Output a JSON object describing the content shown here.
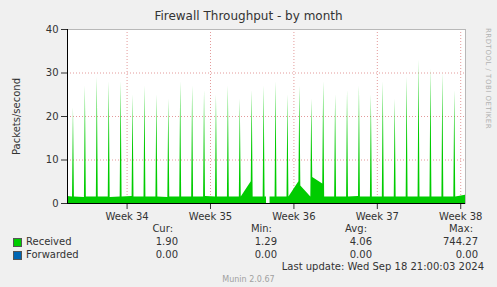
{
  "chart_data": {
    "type": "area",
    "title": "Firewall Throughput - by month",
    "y_label": "Packets/second",
    "x": [
      0,
      0.42,
      0.5,
      0.58,
      1.42,
      1.5,
      1.58,
      2.42,
      2.5,
      2.58,
      3.42,
      3.5,
      3.58,
      4.42,
      4.5,
      4.58,
      5.42,
      5.5,
      5.58,
      6.42,
      6.5,
      6.58,
      7.42,
      7.5,
      7.58,
      8.42,
      8.5,
      8.58,
      9.42,
      9.5,
      9.58,
      10.42,
      10.5,
      10.58,
      11.42,
      11.5,
      11.58,
      12.42,
      12.5,
      12.58,
      13.42,
      13.5,
      13.58,
      14.42,
      14.5,
      14.58,
      15.42,
      15.5,
      15.58,
      16.42,
      16.5,
      16.58,
      16.7,
      16.8,
      17,
      17.42,
      17.5,
      17.58,
      18.42,
      18.5,
      18.58,
      19.42,
      19.5,
      19.58,
      20.42,
      20.5,
      20.58,
      21.42,
      21.5,
      21.58,
      22.42,
      22.5,
      22.58,
      23.42,
      23.5,
      23.58,
      24.42,
      24.5,
      24.58,
      25.42,
      25.5,
      25.58,
      26.42,
      26.5,
      26.58,
      27.42,
      27.5,
      27.58,
      28.42,
      28.5,
      28.58,
      29.42,
      29.5,
      29.58,
      30.42,
      30.5,
      30.58,
      31.42,
      31.5,
      31.58,
      32.42,
      32.5,
      32.58,
      33.4
    ],
    "xlim": [
      0,
      33.4
    ],
    "xticks": [
      {
        "value": 5,
        "label": "Week 34"
      },
      {
        "value": 12,
        "label": "Week 35"
      },
      {
        "value": 19,
        "label": "Week 36"
      },
      {
        "value": 26,
        "label": "Week 37"
      },
      {
        "value": 33,
        "label": "Week 38"
      }
    ],
    "ylim": [
      0,
      40
    ],
    "yticks": [
      0,
      10,
      20,
      30,
      40
    ],
    "grid": true,
    "legend": "bottom",
    "stats_columns": [
      "Cur:",
      "Min:",
      "Avg:",
      "Max:"
    ],
    "series": [
      {
        "name": "Received",
        "color": "#00cc00",
        "type": "area",
        "values": [
          1.6,
          1.5,
          22,
          1.5,
          1.4,
          27,
          1.5,
          1.5,
          29,
          1.5,
          1.5,
          28,
          1.4,
          1.5,
          28,
          1.5,
          1.6,
          25,
          1.5,
          1.5,
          27,
          1.5,
          1.5,
          25,
          1.5,
          1.4,
          24,
          1.5,
          1.5,
          28,
          1.5,
          1.5,
          27,
          1.5,
          1.5,
          26,
          1.6,
          1.5,
          25,
          1.5,
          1.5,
          27,
          1.5,
          1.5,
          24,
          1.5,
          5,
          26,
          1.5,
          1.5,
          27,
          1.5,
          1.5,
          null,
          1.5,
          1.5,
          28,
          1.5,
          1.5,
          25,
          1.5,
          5,
          27,
          4,
          1.5,
          24,
          6,
          4.5,
          28,
          1.5,
          1.5,
          25,
          1.5,
          1.5,
          26,
          1.5,
          1.6,
          27,
          1.5,
          1.5,
          25,
          1.5,
          1.5,
          28,
          1.5,
          1.5,
          24,
          1.5,
          1.5,
          29,
          1.5,
          1.5,
          33,
          1.5,
          1.5,
          31,
          1.5,
          1.5,
          30,
          1.5,
          1.5,
          26,
          1.5,
          1.9
        ],
        "stats": [
          1.9,
          1.29,
          4.06,
          744.27
        ],
        "stat_labels": [
          "1.90",
          "1.29",
          "4.06",
          "744.27"
        ]
      },
      {
        "name": "Forwarded",
        "color": "#0066b3",
        "type": "line",
        "values": [
          0,
          0,
          0,
          0,
          0,
          0,
          0,
          0,
          0,
          0,
          0,
          0,
          0,
          0,
          0,
          0,
          0,
          0,
          0,
          0,
          0,
          0,
          0,
          0,
          0,
          0,
          0,
          0,
          0,
          0,
          0,
          0,
          0,
          0,
          0,
          0,
          0,
          0,
          0,
          0,
          0,
          0,
          0,
          0,
          0,
          0,
          0,
          0,
          0,
          0,
          0,
          0,
          0,
          0,
          0,
          0,
          0,
          0,
          0,
          0,
          0,
          0,
          0,
          0,
          0,
          0,
          0,
          0,
          0,
          0,
          0,
          0,
          0,
          0,
          0,
          0,
          0,
          0,
          0,
          0,
          0,
          0,
          0,
          0,
          0,
          0,
          0,
          0,
          0,
          0,
          0,
          0,
          0,
          0,
          0,
          0,
          0,
          0,
          0,
          0,
          0,
          0,
          0,
          0
        ],
        "stats": [
          0,
          0,
          0,
          0
        ],
        "stat_labels": [
          "0.00",
          "0.00",
          "0.00",
          "0.00"
        ]
      }
    ],
    "watermark": "RRDTOOL / TOBI OETIKER",
    "last_update": "Last update: Wed Sep 18 21:00:03 2024",
    "footer": "Munin 2.0.67"
  }
}
